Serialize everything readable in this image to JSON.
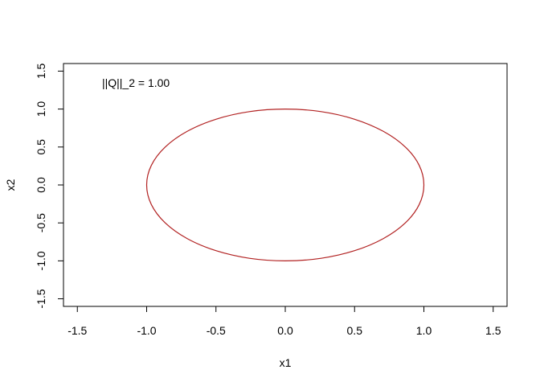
{
  "chart_data": {
    "type": "line",
    "xlabel": "x1",
    "ylabel": "x2",
    "xlim": [
      -1.6,
      1.6
    ],
    "ylim": [
      -1.6,
      1.6
    ],
    "xticks": [
      "-1.5",
      "-1.0",
      "-0.5",
      "0.0",
      "0.5",
      "1.0",
      "1.5"
    ],
    "yticks": [
      "-1.5",
      "-1.0",
      "-0.5",
      "0.0",
      "0.5",
      "1.0",
      "1.5"
    ],
    "grid": false,
    "annotation": "||Q||_2 = 1.00",
    "series": [
      {
        "shape": "unit circle",
        "color": "#b22222",
        "x": [
          1.0,
          0.966,
          0.866,
          0.707,
          0.5,
          0.259,
          0.0,
          -0.259,
          -0.5,
          -0.707,
          -0.866,
          -0.966,
          -1.0,
          -0.966,
          -0.866,
          -0.707,
          -0.5,
          -0.259,
          0.0,
          0.259,
          0.5,
          0.707,
          0.866,
          0.966,
          1.0
        ],
        "y": [
          0.0,
          0.259,
          0.5,
          0.707,
          0.866,
          0.966,
          1.0,
          0.966,
          0.866,
          0.707,
          0.5,
          0.259,
          0.0,
          -0.259,
          -0.5,
          -0.707,
          -0.866,
          -0.966,
          -1.0,
          -0.966,
          -0.866,
          -0.707,
          -0.5,
          -0.259,
          0.0
        ]
      }
    ]
  }
}
